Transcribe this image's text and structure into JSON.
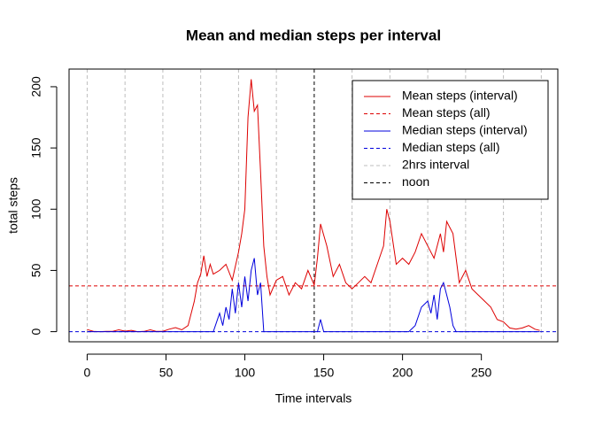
{
  "chart_data": {
    "type": "line",
    "title": "Mean and median steps per interval",
    "x_label": "Time intervals",
    "y_label": "total steps",
    "xlim": [
      -11.48,
      298.48
    ],
    "ylim": [
      -8.25,
      214.42
    ],
    "xticks": [
      0,
      50,
      100,
      150,
      200,
      250
    ],
    "yticks": [
      0,
      50,
      100,
      150,
      200
    ],
    "legend_position": "top-right",
    "series": [
      {
        "name": "Mean steps (interval)",
        "color": "#dd0000",
        "kind": "line",
        "dash": false,
        "x": [
          0,
          4,
          8,
          12,
          16,
          20,
          24,
          28,
          32,
          36,
          40,
          44,
          48,
          52,
          56,
          60,
          64,
          68,
          70,
          72,
          74,
          76,
          78,
          80,
          84,
          88,
          92,
          96,
          98,
          100,
          102,
          104,
          106,
          108,
          110,
          112,
          114,
          116,
          120,
          124,
          128,
          132,
          136,
          140,
          144,
          146,
          148,
          152,
          156,
          160,
          164,
          168,
          172,
          176,
          180,
          184,
          188,
          190,
          192,
          196,
          200,
          204,
          208,
          212,
          216,
          220,
          224,
          226,
          228,
          232,
          236,
          240,
          244,
          248,
          252,
          256,
          260,
          264,
          268,
          272,
          276,
          280,
          284,
          287
        ],
        "values": [
          1.7,
          0.3,
          0,
          0.3,
          0.2,
          1.5,
          0.4,
          1.1,
          0,
          0.2,
          1.5,
          0.2,
          0.3,
          2,
          3.3,
          1.5,
          5,
          25,
          40,
          47,
          62,
          45,
          55,
          47,
          50,
          55,
          42,
          65,
          80,
          100,
          175,
          206,
          180,
          185,
          130,
          70,
          45,
          30,
          42,
          45,
          30,
          40,
          35,
          50,
          38,
          60,
          88,
          70,
          45,
          55,
          40,
          35,
          40,
          45,
          40,
          55,
          70,
          100,
          90,
          55,
          60,
          55,
          65,
          80,
          70,
          60,
          80,
          65,
          90,
          80,
          40,
          50,
          35,
          30,
          25,
          20,
          10,
          8,
          3,
          2,
          3,
          5,
          2,
          1
        ]
      },
      {
        "name": "Mean steps (all)",
        "color": "#dd0000",
        "kind": "hline",
        "dash": true,
        "value": 37.38
      },
      {
        "name": "Median steps (interval)",
        "color": "#0000dd",
        "kind": "line",
        "dash": false,
        "x": [
          0,
          80,
          84,
          86,
          88,
          90,
          92,
          94,
          96,
          98,
          100,
          102,
          104,
          106,
          108,
          110,
          112,
          140,
          146,
          148,
          150,
          204,
          208,
          212,
          216,
          218,
          220,
          222,
          224,
          226,
          228,
          230,
          232,
          234,
          287
        ],
        "values": [
          0,
          0,
          15,
          5,
          20,
          10,
          35,
          15,
          40,
          20,
          45,
          25,
          50,
          60,
          30,
          40,
          0,
          0,
          0,
          10,
          0,
          0,
          5,
          20,
          25,
          15,
          30,
          10,
          35,
          40,
          30,
          20,
          5,
          0,
          0
        ]
      },
      {
        "name": "Median steps (all)",
        "color": "#0000dd",
        "kind": "hline",
        "dash": true,
        "value": 0
      },
      {
        "name": "2hrs interval",
        "color": "#bebebe",
        "kind": "vline",
        "dash": true,
        "x": [
          0,
          24,
          48,
          72,
          96,
          120,
          168,
          192,
          216,
          240,
          264,
          288
        ]
      },
      {
        "name": "noon",
        "color": "#000000",
        "kind": "vline",
        "dash": true,
        "x": [
          144
        ]
      }
    ]
  }
}
